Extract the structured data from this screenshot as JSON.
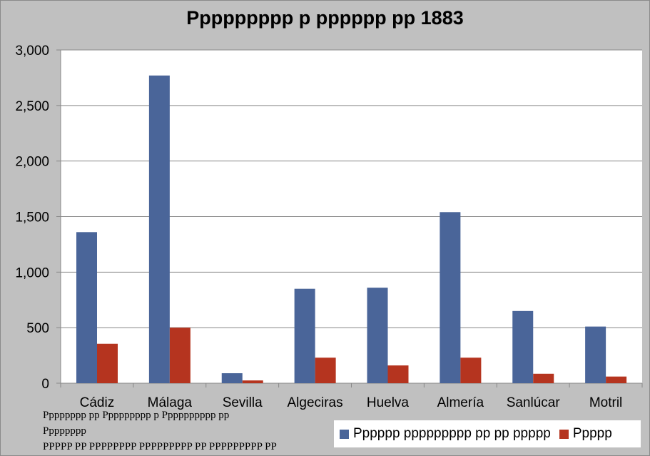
{
  "chart_data": {
    "type": "bar",
    "title": "Ppppppppp p pppppp pp 1883",
    "categories": [
      "Cádiz",
      "Málaga",
      "Sevilla",
      "Algeciras",
      "Huelva",
      "Almería",
      "Sanlúcar",
      "Motril"
    ],
    "series": [
      {
        "name": "Pppppp ppppppppp pp pp ppppp",
        "color": "#4a6599",
        "values": [
          1360,
          2770,
          90,
          850,
          860,
          1540,
          650,
          510
        ]
      },
      {
        "name": "Ppppp",
        "color": "#b5341f",
        "values": [
          355,
          500,
          25,
          230,
          160,
          230,
          85,
          60
        ]
      }
    ],
    "ylim": [
      0,
      3000
    ],
    "yticks": [
      "0",
      "500",
      "1,000",
      "1,500",
      "2,000",
      "2,500",
      "3,000"
    ],
    "ytick_values": [
      0,
      500,
      1000,
      1500,
      2000,
      2500,
      3000
    ],
    "grid": true,
    "legend_position": "bottom-right",
    "plot_background": "#ffffff",
    "gridline_color": "#888888"
  },
  "note": [
    "Pppppppp pp Ppppppppp p Pppppppppp pp",
    "Pppppppp",
    "PPPPP PP PPPPPPPP PPPPPPPPP PP PPPPPPPPP PP"
  ]
}
